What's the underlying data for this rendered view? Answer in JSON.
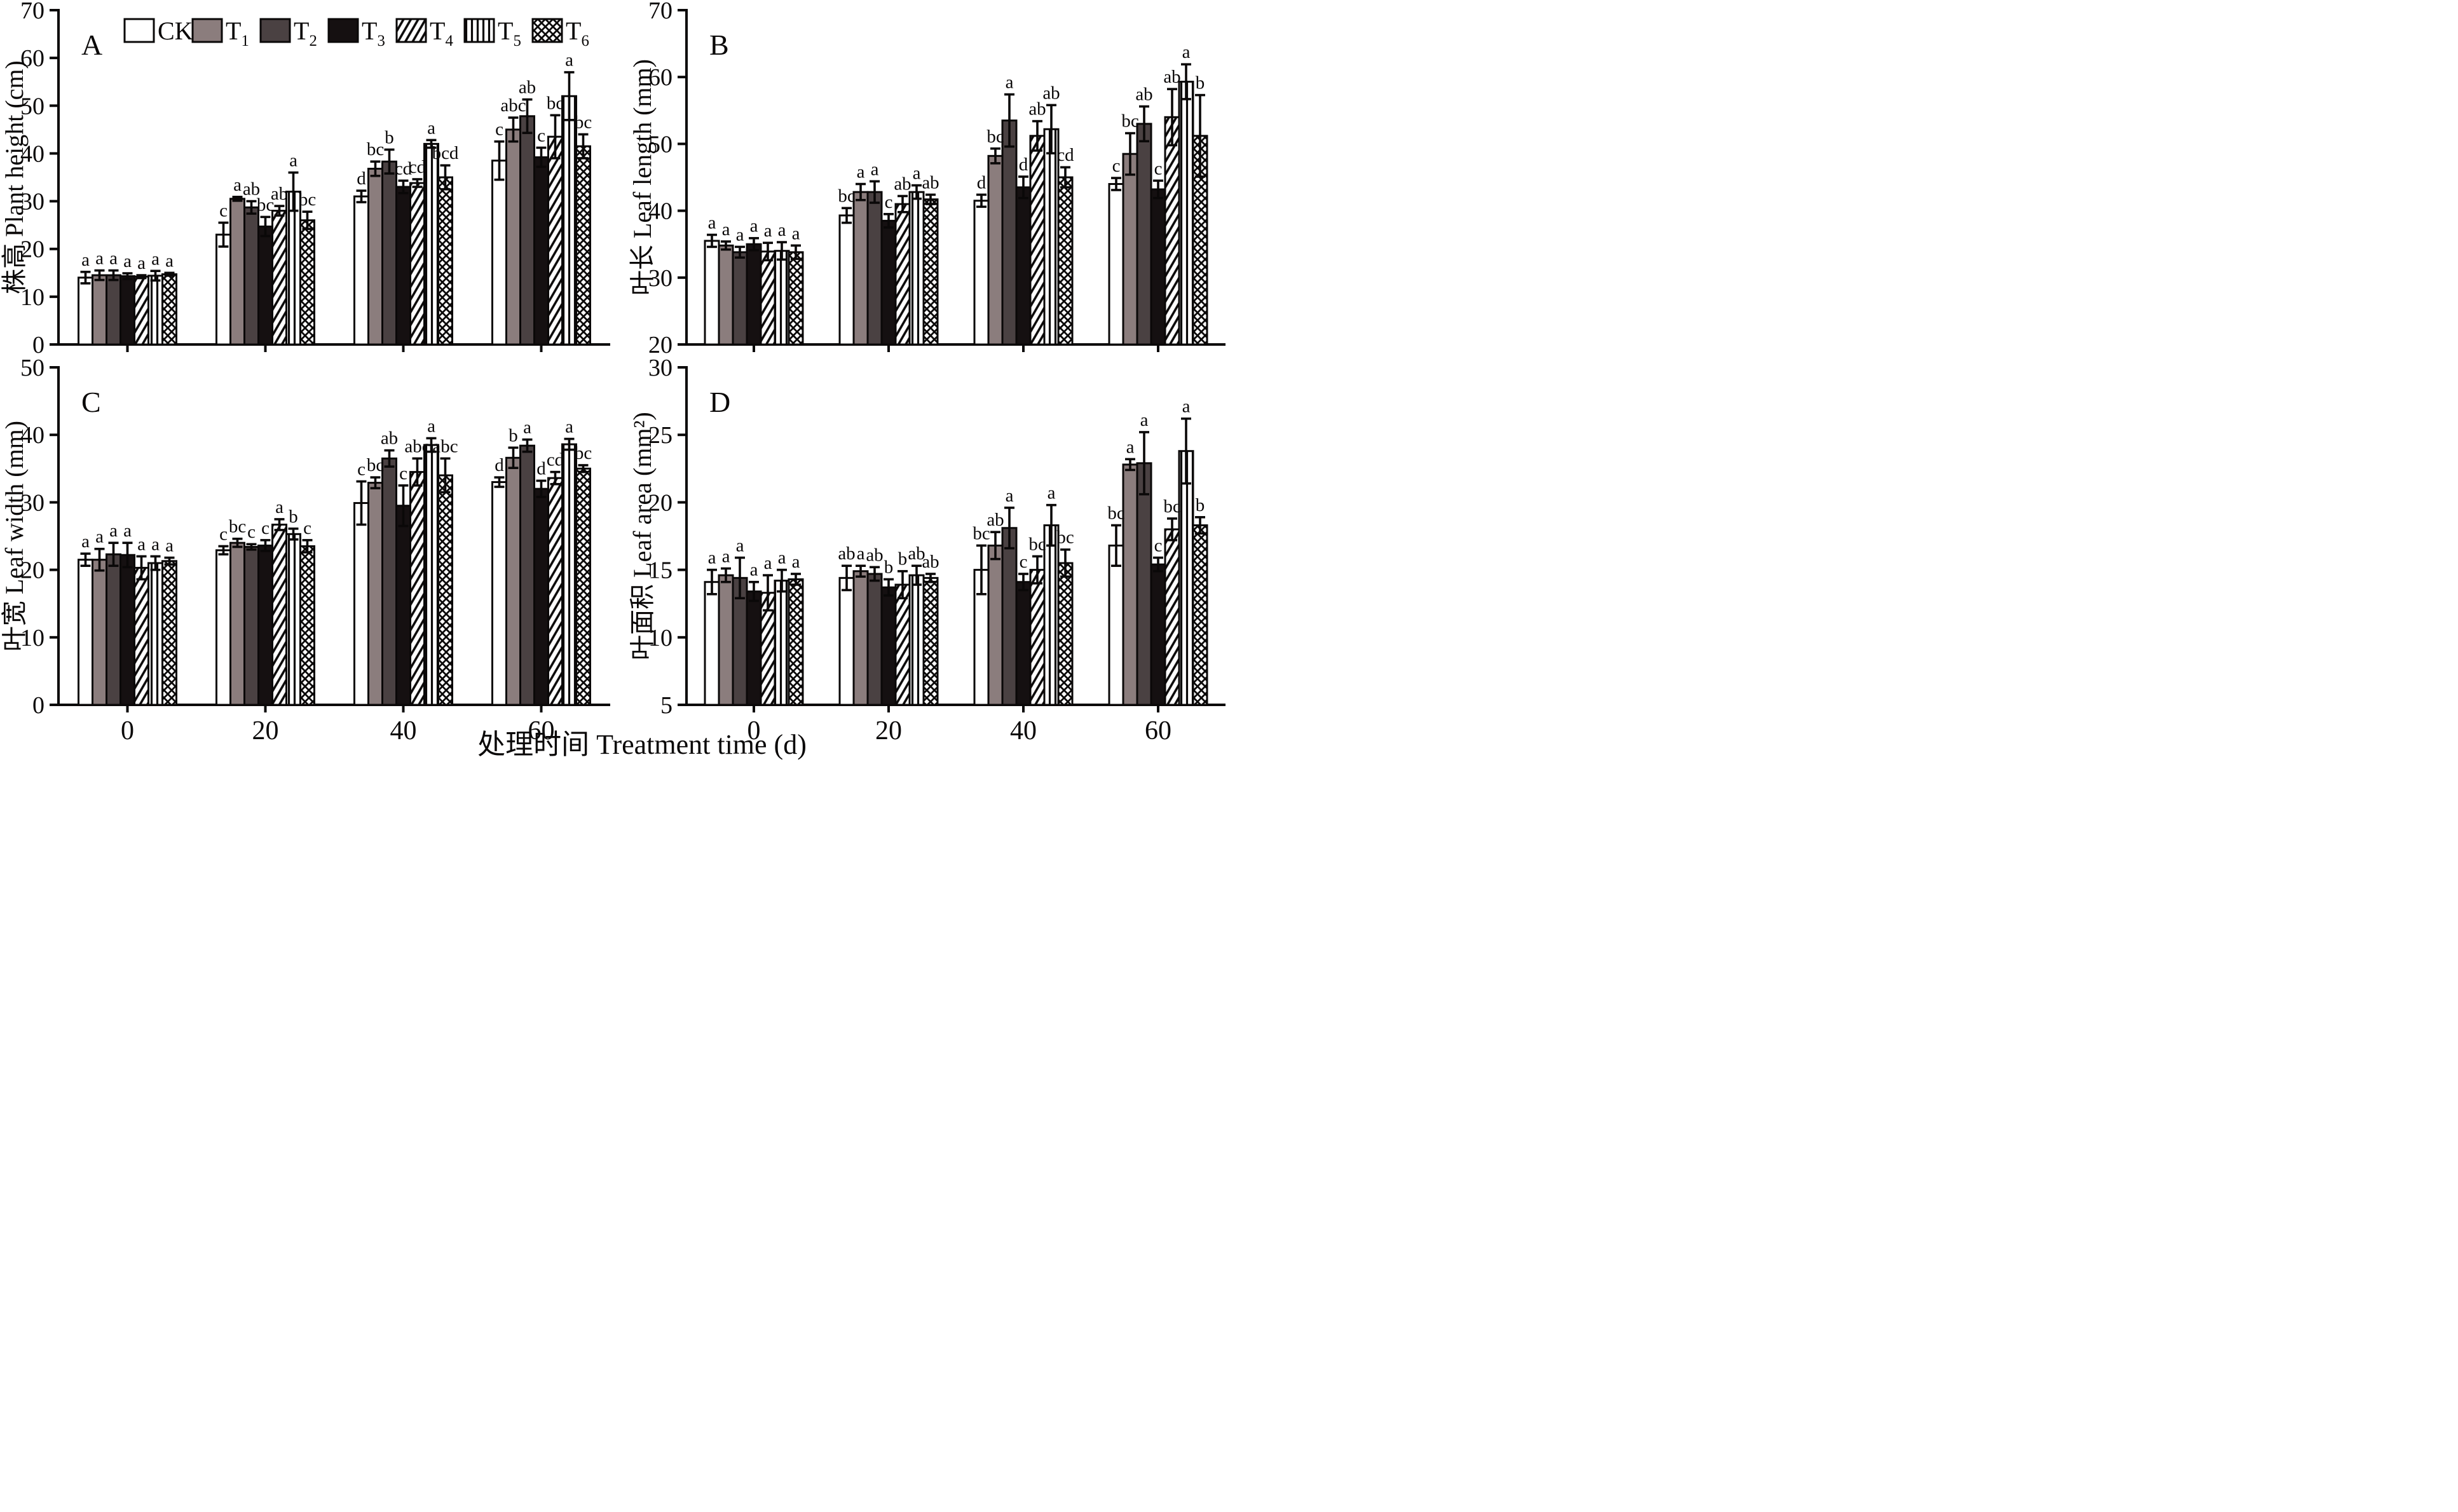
{
  "figure": {
    "x_axis_title": "处理时间 Treatment time (d)",
    "x_categories": [
      "0",
      "20",
      "40",
      "60"
    ],
    "legend": [
      {
        "text": "CK",
        "sub": ""
      },
      {
        "text": "T",
        "sub": "1"
      },
      {
        "text": "T",
        "sub": "2"
      },
      {
        "text": "T",
        "sub": "3"
      },
      {
        "text": "T",
        "sub": "4"
      },
      {
        "text": "T",
        "sub": "5"
      },
      {
        "text": "T",
        "sub": "6"
      }
    ],
    "series_styles": [
      {
        "name": "CK",
        "fill": "#ffffff",
        "pattern": null
      },
      {
        "name": "T1",
        "fill": "#8b7d7d",
        "pattern": null
      },
      {
        "name": "T2",
        "fill": "#4a4142",
        "pattern": null
      },
      {
        "name": "T3",
        "fill": "#151011",
        "pattern": null
      },
      {
        "name": "T4",
        "fill": "#ffffff",
        "pattern": "diagonal-hatch"
      },
      {
        "name": "T5",
        "fill": "#ffffff",
        "pattern": "vertical-lines"
      },
      {
        "name": "T6",
        "fill": "#ffffff",
        "pattern": "cross-hatch"
      }
    ],
    "ink_color": "#0a0808"
  },
  "chart_data": [
    {
      "id": "A",
      "type": "bar",
      "panel_label": "A",
      "ylabel": "株高 Plant height (cm)",
      "ylim": [
        0,
        70
      ],
      "yticks": [
        0,
        10,
        20,
        30,
        40,
        50,
        60,
        70
      ],
      "categories": [
        "0",
        "20",
        "40",
        "60"
      ],
      "series": [
        {
          "name": "CK",
          "values": [
            14.0,
            23.0,
            31.0,
            38.5
          ],
          "errors": [
            1.2,
            2.5,
            1.2,
            4.0
          ],
          "letters": [
            "a",
            "c",
            "d",
            "c"
          ]
        },
        {
          "name": "T1",
          "values": [
            14.5,
            30.5,
            36.8,
            45.0
          ],
          "errors": [
            1.0,
            0.4,
            1.5,
            2.5
          ],
          "letters": [
            "a",
            "a",
            "bc",
            "abc"
          ]
        },
        {
          "name": "T2",
          "values": [
            14.5,
            28.7,
            38.3,
            47.8
          ],
          "errors": [
            1.0,
            1.3,
            2.5,
            3.5
          ],
          "letters": [
            "a",
            "ab",
            "b",
            "ab"
          ]
        },
        {
          "name": "T3",
          "values": [
            14.3,
            24.7,
            33.0,
            39.2
          ],
          "errors": [
            0.6,
            2.0,
            1.3,
            2.0
          ],
          "letters": [
            "a",
            "bc",
            "cd",
            "c"
          ]
        },
        {
          "name": "T4",
          "values": [
            14.2,
            28.0,
            33.8,
            43.5
          ],
          "errors": [
            0.3,
            1.0,
            0.8,
            4.5
          ],
          "letters": [
            "a",
            "ab",
            "cd",
            "bc"
          ]
        },
        {
          "name": "T5",
          "values": [
            14.4,
            32.0,
            42.0,
            52.0
          ],
          "errors": [
            1.0,
            4.0,
            0.8,
            5.0
          ],
          "letters": [
            "a",
            "a",
            "a",
            "a"
          ]
        },
        {
          "name": "T6",
          "values": [
            14.7,
            26.0,
            35.0,
            41.5
          ],
          "errors": [
            0.3,
            1.8,
            2.5,
            2.5
          ],
          "letters": [
            "a",
            "bc",
            "bcd",
            "bc"
          ]
        }
      ]
    },
    {
      "id": "B",
      "type": "bar",
      "panel_label": "B",
      "ylabel": "叶长 Leaf length (mm)",
      "ylim": [
        20,
        70
      ],
      "yticks": [
        20,
        30,
        40,
        50,
        60,
        70
      ],
      "categories": [
        "0",
        "20",
        "40",
        "60"
      ],
      "series": [
        {
          "name": "CK",
          "values": [
            35.5,
            39.3,
            41.5,
            44.0
          ],
          "errors": [
            0.9,
            1.1,
            0.9,
            0.9
          ],
          "letters": [
            "a",
            "bc",
            "d",
            "c"
          ]
        },
        {
          "name": "T1",
          "values": [
            34.8,
            42.8,
            48.2,
            48.5
          ],
          "errors": [
            0.6,
            1.2,
            1.1,
            3.1
          ],
          "letters": [
            "a",
            "a",
            "bc",
            "bc"
          ]
        },
        {
          "name": "T2",
          "values": [
            33.8,
            42.8,
            53.5,
            53.0
          ],
          "errors": [
            0.8,
            1.6,
            3.9,
            2.6
          ],
          "letters": [
            "a",
            "a",
            "a",
            "ab"
          ]
        },
        {
          "name": "T3",
          "values": [
            35.0,
            38.5,
            43.5,
            43.2
          ],
          "errors": [
            0.9,
            1.0,
            1.6,
            1.3
          ],
          "letters": [
            "a",
            "c",
            "d",
            "c"
          ]
        },
        {
          "name": "T4",
          "values": [
            33.9,
            41.0,
            51.2,
            54.0
          ],
          "errors": [
            1.3,
            1.2,
            2.2,
            4.2
          ],
          "letters": [
            "a",
            "ab",
            "ab",
            "ab"
          ]
        },
        {
          "name": "T5",
          "values": [
            34.0,
            42.8,
            52.2,
            59.3
          ],
          "errors": [
            1.3,
            1.0,
            3.6,
            2.6
          ],
          "letters": [
            "a",
            "a",
            "ab",
            "a"
          ]
        },
        {
          "name": "T6",
          "values": [
            33.8,
            41.7,
            45.0,
            51.2
          ],
          "errors": [
            1.0,
            0.7,
            1.5,
            6.1
          ],
          "letters": [
            "a",
            "ab",
            "cd",
            "b"
          ]
        }
      ]
    },
    {
      "id": "C",
      "type": "bar",
      "panel_label": "C",
      "ylabel": "叶宽 Leaf width (mm)",
      "ylim": [
        0,
        50
      ],
      "yticks": [
        0,
        10,
        20,
        30,
        40,
        50
      ],
      "categories": [
        "0",
        "20",
        "40",
        "60"
      ],
      "series": [
        {
          "name": "CK",
          "values": [
            21.5,
            22.9,
            29.9,
            33.0
          ],
          "errors": [
            0.9,
            0.6,
            3.2,
            0.7
          ],
          "letters": [
            "a",
            "c",
            "c",
            "d"
          ]
        },
        {
          "name": "T1",
          "values": [
            21.5,
            24.0,
            32.9,
            36.6
          ],
          "errors": [
            1.6,
            0.6,
            0.8,
            1.5
          ],
          "letters": [
            "a",
            "bc",
            "bc",
            "b"
          ]
        },
        {
          "name": "T2",
          "values": [
            22.3,
            23.4,
            36.5,
            38.4
          ],
          "errors": [
            1.7,
            0.4,
            1.2,
            0.9
          ],
          "letters": [
            "a",
            "c",
            "ab",
            "a"
          ]
        },
        {
          "name": "T3",
          "values": [
            22.2,
            23.6,
            29.5,
            32.0
          ],
          "errors": [
            1.8,
            0.8,
            3.0,
            1.2
          ],
          "letters": [
            "a",
            "c",
            "c",
            "d"
          ]
        },
        {
          "name": "T4",
          "values": [
            20.3,
            26.7,
            34.5,
            33.6
          ],
          "errors": [
            1.7,
            0.8,
            2.0,
            0.9
          ],
          "letters": [
            "a",
            "a",
            "abc",
            "cd"
          ]
        },
        {
          "name": "T5",
          "values": [
            21.0,
            25.3,
            38.5,
            38.6
          ],
          "errors": [
            1.0,
            0.8,
            1.0,
            0.8
          ],
          "letters": [
            "a",
            "b",
            "a",
            "a"
          ]
        },
        {
          "name": "T6",
          "values": [
            21.3,
            23.5,
            34.0,
            35.0
          ],
          "errors": [
            0.5,
            0.9,
            2.5,
            0.5
          ],
          "letters": [
            "a",
            "c",
            "abc",
            "bc"
          ]
        }
      ]
    },
    {
      "id": "D",
      "type": "bar",
      "panel_label": "D",
      "ylabel": "叶面积 Leaf area (mm²)",
      "ylim": [
        5,
        30
      ],
      "yticks": [
        5,
        10,
        15,
        20,
        25,
        30
      ],
      "categories": [
        "0",
        "20",
        "40",
        "60"
      ],
      "series": [
        {
          "name": "CK",
          "values": [
            14.1,
            14.4,
            15.0,
            16.8
          ],
          "errors": [
            0.9,
            0.9,
            1.8,
            1.5
          ],
          "letters": [
            "a",
            "ab",
            "bc",
            "bc"
          ]
        },
        {
          "name": "T1",
          "values": [
            14.6,
            14.9,
            16.8,
            22.8
          ],
          "errors": [
            0.5,
            0.4,
            1.0,
            0.4
          ],
          "letters": [
            "a",
            "a",
            "ab",
            "a"
          ]
        },
        {
          "name": "T2",
          "values": [
            14.4,
            14.7,
            18.1,
            22.9
          ],
          "errors": [
            1.5,
            0.5,
            1.5,
            2.3
          ],
          "letters": [
            "a",
            "ab",
            "a",
            "a"
          ]
        },
        {
          "name": "T3",
          "values": [
            13.4,
            13.7,
            14.1,
            15.4
          ],
          "errors": [
            0.7,
            0.6,
            0.6,
            0.5
          ],
          "letters": [
            "a",
            "b",
            "c",
            "c"
          ]
        },
        {
          "name": "T4",
          "values": [
            13.3,
            13.9,
            15.0,
            18.0
          ],
          "errors": [
            1.3,
            1.0,
            1.0,
            0.8
          ],
          "letters": [
            "a",
            "b",
            "bc",
            "bc"
          ]
        },
        {
          "name": "T5",
          "values": [
            14.2,
            14.6,
            18.3,
            23.8
          ],
          "errors": [
            0.8,
            0.7,
            1.5,
            2.4
          ],
          "letters": [
            "a",
            "ab",
            "a",
            "a"
          ]
        },
        {
          "name": "T6",
          "values": [
            14.3,
            14.4,
            15.5,
            18.3
          ],
          "errors": [
            0.4,
            0.3,
            1.0,
            0.6
          ],
          "letters": [
            "a",
            "ab",
            "bc",
            "b"
          ]
        }
      ]
    }
  ]
}
